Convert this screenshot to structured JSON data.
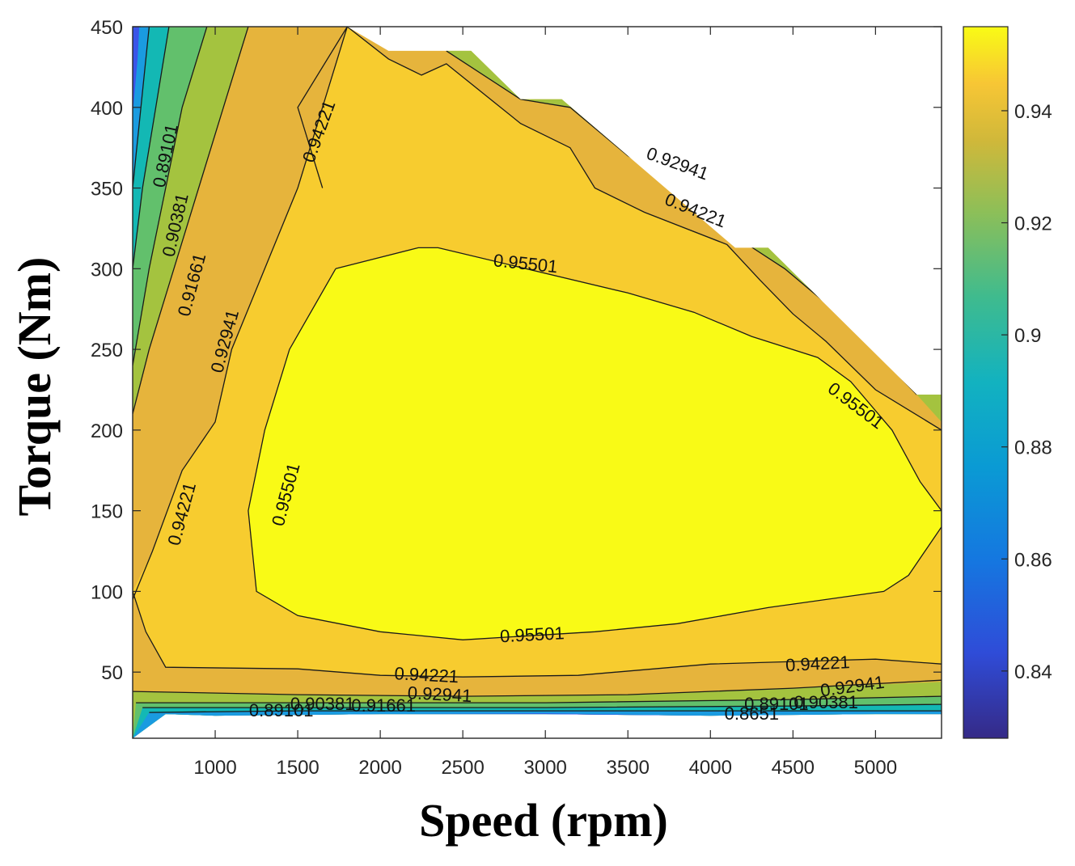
{
  "chart_data": {
    "type": "contour",
    "title": "",
    "xlabel": "Speed (rpm)",
    "ylabel": "Torque (Nm)",
    "xlim": [
      500,
      5400
    ],
    "ylim": [
      9,
      450
    ],
    "xticks": [
      1000,
      1500,
      2000,
      2500,
      3000,
      3500,
      4000,
      4500,
      5000
    ],
    "yticks": [
      50,
      100,
      150,
      200,
      250,
      300,
      350,
      400,
      450
    ],
    "colorbar": {
      "range": [
        0.828,
        0.955
      ],
      "ticks": [
        0.84,
        0.86,
        0.88,
        0.9,
        0.92,
        0.94
      ],
      "colormap": "parula"
    },
    "contour_levels": [
      0.89101,
      0.90381,
      0.91661,
      0.92941,
      0.94221,
      0.95501
    ],
    "fill_colors": {
      "below": "#3a55e8",
      "0.89101": "#1a9be0",
      "0.90381": "#13b8b4",
      "0.91661": "#62c06c",
      "0.92941": "#a4c33f",
      "0.94221": "#e6b43c",
      "0.95501": "#f7cc2f",
      "above": "#f9fa16"
    },
    "operating_envelope": [
      [
        500,
        450
      ],
      [
        1800,
        450
      ],
      [
        2050,
        435
      ],
      [
        2550,
        435
      ],
      [
        2850,
        405
      ],
      [
        3100,
        405
      ],
      [
        4150,
        313
      ],
      [
        4350,
        313
      ],
      [
        5250,
        222
      ],
      [
        5400,
        222
      ],
      [
        5400,
        24
      ],
      [
        5000,
        24
      ],
      [
        4000,
        23
      ],
      [
        3000,
        24
      ],
      [
        2000,
        24
      ],
      [
        1000,
        23
      ],
      [
        700,
        24
      ],
      [
        500,
        9
      ]
    ],
    "contours": [
      {
        "level": 0.95501,
        "points": [
          [
            1730,
            300
          ],
          [
            2230,
            313
          ],
          [
            2350,
            313
          ],
          [
            3500,
            285
          ],
          [
            3900,
            273
          ],
          [
            4250,
            258
          ],
          [
            4650,
            245
          ],
          [
            4850,
            230
          ],
          [
            5100,
            200
          ],
          [
            5270,
            168
          ],
          [
            5400,
            150
          ],
          [
            5400,
            140
          ],
          [
            5200,
            110
          ],
          [
            5050,
            100
          ],
          [
            4350,
            90
          ],
          [
            3800,
            80
          ],
          [
            3300,
            75
          ],
          [
            2500,
            70
          ],
          [
            2000,
            75
          ],
          [
            1500,
            85
          ],
          [
            1250,
            100
          ],
          [
            1200,
            150
          ],
          [
            1300,
            200
          ],
          [
            1450,
            250
          ],
          [
            1730,
            300
          ]
        ]
      },
      {
        "level": 0.94221,
        "points": [
          [
            1650,
            350
          ],
          [
            1500,
            400
          ],
          [
            1800,
            450
          ],
          [
            2050,
            430
          ],
          [
            2250,
            420
          ],
          [
            2400,
            427
          ],
          [
            2850,
            390
          ],
          [
            3150,
            375
          ],
          [
            3300,
            350
          ],
          [
            3600,
            335
          ],
          [
            4100,
            315
          ],
          [
            4300,
            293
          ],
          [
            4500,
            272
          ],
          [
            4700,
            255
          ],
          [
            5000,
            225
          ],
          [
            5400,
            200
          ]
        ]
      },
      {
        "level": 0.94221,
        "points": [
          [
            500,
            95
          ],
          [
            620,
            125
          ],
          [
            800,
            175
          ],
          [
            1000,
            205
          ],
          [
            1100,
            250
          ],
          [
            1300,
            300
          ],
          [
            1500,
            350
          ],
          [
            1650,
            400
          ],
          [
            1800,
            450
          ]
        ]
      },
      {
        "level": 0.94221,
        "points": [
          [
            500,
            100
          ],
          [
            580,
            75
          ],
          [
            700,
            53
          ],
          [
            1500,
            52
          ],
          [
            2000,
            48
          ],
          [
            2500,
            47
          ],
          [
            3200,
            48
          ],
          [
            4000,
            55
          ],
          [
            5000,
            58
          ],
          [
            5400,
            55
          ]
        ]
      },
      {
        "level": 0.92941,
        "points": [
          [
            500,
            210
          ],
          [
            600,
            250
          ],
          [
            750,
            300
          ],
          [
            900,
            350
          ],
          [
            1050,
            400
          ],
          [
            1200,
            450
          ]
        ]
      },
      {
        "level": 0.92941,
        "points": [
          [
            2400,
            435
          ],
          [
            2850,
            405
          ],
          [
            3150,
            400
          ],
          [
            3500,
            370
          ],
          [
            3900,
            345
          ],
          [
            4150,
            320
          ],
          [
            4450,
            300
          ],
          [
            4800,
            270
          ],
          [
            5250,
            222
          ]
        ]
      },
      {
        "level": 0.92941,
        "points": [
          [
            500,
            38
          ],
          [
            1500,
            36
          ],
          [
            2500,
            35
          ],
          [
            3500,
            36
          ],
          [
            4500,
            40
          ],
          [
            5400,
            45
          ]
        ]
      },
      {
        "level": 0.91661,
        "points": [
          [
            500,
            240
          ],
          [
            600,
            300
          ],
          [
            700,
            350
          ],
          [
            800,
            400
          ],
          [
            950,
            450
          ]
        ]
      },
      {
        "level": 0.91661,
        "points": [
          [
            520,
            31
          ],
          [
            1500,
            31
          ],
          [
            3000,
            31
          ],
          [
            4500,
            33
          ],
          [
            5400,
            35
          ]
        ]
      },
      {
        "level": 0.90381,
        "points": [
          [
            500,
            300
          ],
          [
            560,
            350
          ],
          [
            640,
            400
          ],
          [
            720,
            450
          ]
        ]
      },
      {
        "level": 0.90381,
        "points": [
          [
            560,
            28
          ],
          [
            1500,
            28
          ],
          [
            3000,
            28
          ],
          [
            4500,
            29
          ],
          [
            5400,
            30
          ]
        ]
      },
      {
        "level": 0.89101,
        "points": [
          [
            500,
            350
          ],
          [
            550,
            400
          ],
          [
            600,
            450
          ]
        ]
      },
      {
        "level": 0.89101,
        "points": [
          [
            600,
            25
          ],
          [
            1500,
            26
          ],
          [
            3000,
            26
          ],
          [
            4500,
            26
          ],
          [
            5400,
            26
          ]
        ]
      }
    ],
    "contour_labels": [
      {
        "text": "0.95501",
        "x": 2880,
        "y": 303,
        "angle": 6
      },
      {
        "text": "0.95501",
        "x": 1430,
        "y": 160,
        "angle": -75
      },
      {
        "text": "0.95501",
        "x": 2920,
        "y": 73,
        "angle": -3
      },
      {
        "text": "0.95501",
        "x": 4880,
        "y": 215,
        "angle": 37
      },
      {
        "text": "0.94221",
        "x": 1630,
        "y": 385,
        "angle": -70
      },
      {
        "text": "0.94221",
        "x": 800,
        "y": 148,
        "angle": -75
      },
      {
        "text": "0.94221",
        "x": 3910,
        "y": 336,
        "angle": 22
      },
      {
        "text": "0.94221",
        "x": 2280,
        "y": 48,
        "angle": 3
      },
      {
        "text": "0.94221",
        "x": 4650,
        "y": 55,
        "angle": -3
      },
      {
        "text": "0.92941",
        "x": 3800,
        "y": 365,
        "angle": 20
      },
      {
        "text": "0.92941",
        "x": 1060,
        "y": 255,
        "angle": -75
      },
      {
        "text": "0.92941",
        "x": 4860,
        "y": 41,
        "angle": -8
      },
      {
        "text": "0.92941",
        "x": 2360,
        "y": 36,
        "angle": 3
      },
      {
        "text": "0.91661",
        "x": 860,
        "y": 290,
        "angle": -75
      },
      {
        "text": "0.91661",
        "x": 2020,
        "y": 29,
        "angle": 0
      },
      {
        "text": "0.90381",
        "x": 760,
        "y": 327,
        "angle": -77
      },
      {
        "text": "0.90381",
        "x": 1650,
        "y": 30,
        "angle": 0
      },
      {
        "text": "0.89101",
        "x": 700,
        "y": 370,
        "angle": -78
      },
      {
        "text": "0.89101",
        "x": 1400,
        "y": 26,
        "angle": 0
      },
      {
        "text": "0.89101",
        "x": 4400,
        "y": 30,
        "angle": 0
      },
      {
        "text": "0.90381",
        "x": 4700,
        "y": 31,
        "angle": 0
      },
      {
        "text": "0.8651",
        "x": 4250,
        "y": 24,
        "angle": 0
      }
    ]
  }
}
